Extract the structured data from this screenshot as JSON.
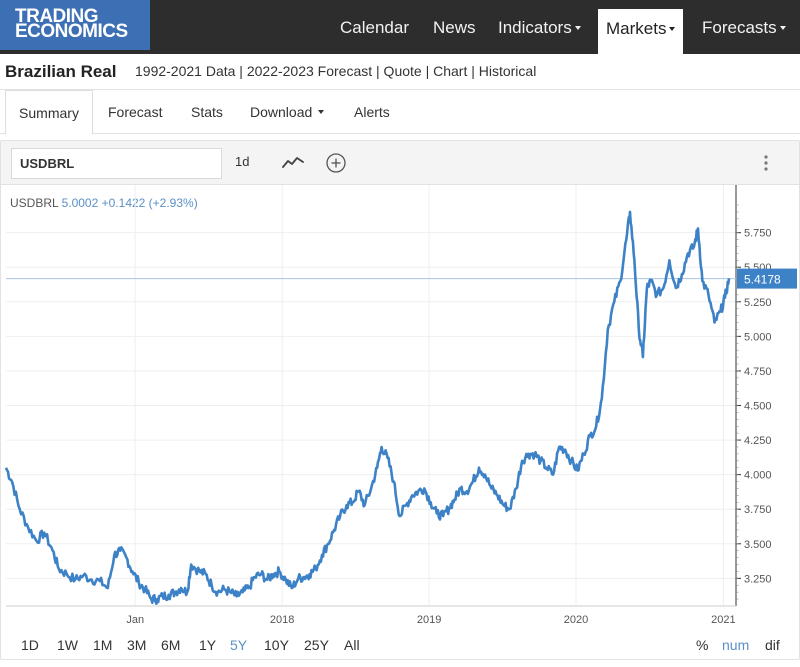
{
  "nav": {
    "logo_line1": "TRADING",
    "logo_line2": "ECONOMICS",
    "items": [
      "Calendar",
      "News",
      "Indicators",
      "Markets",
      "Forecasts"
    ],
    "active": "Markets"
  },
  "page": {
    "title": "Brazilian Real",
    "links": "1992-2021 Data | 2022-2023 Forecast | Quote | Chart | Historical"
  },
  "tabs": [
    "Summary",
    "Forecast",
    "Stats",
    "Download",
    "Alerts"
  ],
  "active_tab": "Summary",
  "toolbar": {
    "symbol": "USDBRL",
    "interval": "1d",
    "icons": [
      "line-chart-icon",
      "add-circle-icon",
      "more-vertical-icon"
    ]
  },
  "quote": {
    "symbol": "USDBRL",
    "value": "5.0002",
    "change": "+0.1422 (+2.93%)"
  },
  "ranges": [
    "1D",
    "1W",
    "1M",
    "3M",
    "6M",
    "1Y",
    "5Y",
    "10Y",
    "25Y",
    "All"
  ],
  "active_range": "5Y",
  "modes": [
    "%",
    "num",
    "dif"
  ],
  "active_mode": "num",
  "colors": {
    "accent": "#3d82c6",
    "nav_bg": "#2d2d2d",
    "logo_bg": "#3c6fb4"
  },
  "chart_data": {
    "type": "line",
    "series": [
      {
        "name": "USDBRL",
        "points": [
          [
            "2016-02-15",
            4.05
          ],
          [
            "2016-03-01",
            3.95
          ],
          [
            "2016-03-20",
            3.75
          ],
          [
            "2016-04-10",
            3.62
          ],
          [
            "2016-05-01",
            3.52
          ],
          [
            "2016-05-20",
            3.58
          ],
          [
            "2016-06-10",
            3.45
          ],
          [
            "2016-06-25",
            3.32
          ],
          [
            "2016-07-15",
            3.28
          ],
          [
            "2016-08-05",
            3.24
          ],
          [
            "2016-08-25",
            3.27
          ],
          [
            "2016-09-15",
            3.24
          ],
          [
            "2016-10-05",
            3.23
          ],
          [
            "2016-10-25",
            3.18
          ],
          [
            "2016-11-10",
            3.42
          ],
          [
            "2016-11-25",
            3.45
          ],
          [
            "2016-12-10",
            3.4
          ],
          [
            "2016-12-25",
            3.3
          ],
          [
            "2017-01-10",
            3.22
          ],
          [
            "2017-01-25",
            3.17
          ],
          [
            "2017-02-10",
            3.1
          ],
          [
            "2017-02-25",
            3.1
          ],
          [
            "2017-03-10",
            3.12
          ],
          [
            "2017-03-25",
            3.13
          ],
          [
            "2017-04-10",
            3.15
          ],
          [
            "2017-04-25",
            3.18
          ],
          [
            "2017-05-10",
            3.15
          ],
          [
            "2017-05-20",
            3.35
          ],
          [
            "2017-06-10",
            3.3
          ],
          [
            "2017-06-25",
            3.28
          ],
          [
            "2017-07-10",
            3.2
          ],
          [
            "2017-07-25",
            3.15
          ],
          [
            "2017-08-10",
            3.17
          ],
          [
            "2017-08-25",
            3.15
          ],
          [
            "2017-09-10",
            3.12
          ],
          [
            "2017-09-25",
            3.15
          ],
          [
            "2017-10-10",
            3.18
          ],
          [
            "2017-10-25",
            3.26
          ],
          [
            "2017-11-10",
            3.28
          ],
          [
            "2017-11-25",
            3.24
          ],
          [
            "2017-12-10",
            3.28
          ],
          [
            "2017-12-25",
            3.3
          ],
          [
            "2018-01-10",
            3.24
          ],
          [
            "2018-01-25",
            3.18
          ],
          [
            "2018-02-10",
            3.25
          ],
          [
            "2018-02-25",
            3.26
          ],
          [
            "2018-03-10",
            3.28
          ],
          [
            "2018-03-25",
            3.32
          ],
          [
            "2018-04-10",
            3.42
          ],
          [
            "2018-04-25",
            3.5
          ],
          [
            "2018-05-10",
            3.6
          ],
          [
            "2018-05-25",
            3.7
          ],
          [
            "2018-06-10",
            3.78
          ],
          [
            "2018-06-25",
            3.8
          ],
          [
            "2018-07-10",
            3.88
          ],
          [
            "2018-07-25",
            3.78
          ],
          [
            "2018-08-10",
            3.9
          ],
          [
            "2018-08-25",
            4.05
          ],
          [
            "2018-09-05",
            4.2
          ],
          [
            "2018-09-20",
            4.12
          ],
          [
            "2018-10-05",
            3.95
          ],
          [
            "2018-10-20",
            3.7
          ],
          [
            "2018-11-05",
            3.78
          ],
          [
            "2018-11-20",
            3.85
          ],
          [
            "2018-12-05",
            3.88
          ],
          [
            "2018-12-20",
            3.9
          ],
          [
            "2019-01-05",
            3.8
          ],
          [
            "2019-01-20",
            3.72
          ],
          [
            "2019-02-05",
            3.7
          ],
          [
            "2019-02-20",
            3.76
          ],
          [
            "2019-03-05",
            3.82
          ],
          [
            "2019-03-20",
            3.9
          ],
          [
            "2019-04-05",
            3.88
          ],
          [
            "2019-04-20",
            3.95
          ],
          [
            "2019-05-05",
            4.05
          ],
          [
            "2019-05-20",
            4.0
          ],
          [
            "2019-06-05",
            3.9
          ],
          [
            "2019-06-20",
            3.85
          ],
          [
            "2019-07-05",
            3.78
          ],
          [
            "2019-07-20",
            3.75
          ],
          [
            "2019-08-05",
            3.9
          ],
          [
            "2019-08-20",
            4.1
          ],
          [
            "2019-09-05",
            4.15
          ],
          [
            "2019-09-20",
            4.15
          ],
          [
            "2019-10-05",
            4.1
          ],
          [
            "2019-10-20",
            4.05
          ],
          [
            "2019-11-05",
            4.0
          ],
          [
            "2019-11-20",
            4.2
          ],
          [
            "2019-12-05",
            4.18
          ],
          [
            "2019-12-20",
            4.1
          ],
          [
            "2020-01-05",
            4.03
          ],
          [
            "2020-01-20",
            4.15
          ],
          [
            "2020-02-05",
            4.28
          ],
          [
            "2020-02-20",
            4.35
          ],
          [
            "2020-03-05",
            4.55
          ],
          [
            "2020-03-20",
            5.05
          ],
          [
            "2020-04-05",
            5.25
          ],
          [
            "2020-04-20",
            5.4
          ],
          [
            "2020-05-05",
            5.7
          ],
          [
            "2020-05-14",
            5.9
          ],
          [
            "2020-05-25",
            5.55
          ],
          [
            "2020-06-05",
            5.05
          ],
          [
            "2020-06-15",
            4.85
          ],
          [
            "2020-06-25",
            5.35
          ],
          [
            "2020-07-05",
            5.4
          ],
          [
            "2020-07-20",
            5.3
          ],
          [
            "2020-08-05",
            5.35
          ],
          [
            "2020-08-20",
            5.55
          ],
          [
            "2020-09-05",
            5.35
          ],
          [
            "2020-09-20",
            5.45
          ],
          [
            "2020-10-05",
            5.6
          ],
          [
            "2020-10-20",
            5.65
          ],
          [
            "2020-10-30",
            5.78
          ],
          [
            "2020-11-10",
            5.4
          ],
          [
            "2020-11-25",
            5.3
          ],
          [
            "2020-12-10",
            5.1
          ],
          [
            "2020-12-25",
            5.18
          ],
          [
            "2021-01-05",
            5.28
          ],
          [
            "2021-01-15",
            5.42
          ]
        ]
      }
    ],
    "x_ticks": [
      "Jan",
      "2018",
      "2019",
      "2020",
      "2021"
    ],
    "y_ticks": [
      "3.250",
      "3.500",
      "3.750",
      "4.000",
      "4.250",
      "4.500",
      "4.750",
      "5.000",
      "5.250",
      "5.500",
      "5.750"
    ],
    "ylim": [
      3.05,
      5.95
    ],
    "last_price_label": "5.4178",
    "last_price": 5.4178,
    "grid": true
  }
}
